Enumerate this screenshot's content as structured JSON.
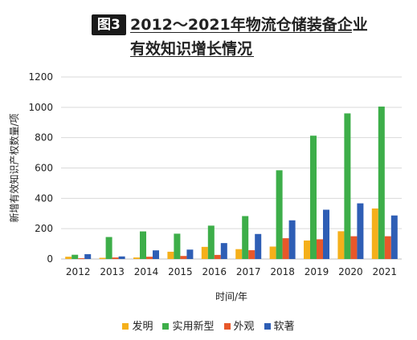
{
  "header": {
    "badge": "图3",
    "title_line1": "2012～2021年物流仓储装备企业",
    "title_line2": "有效知识增长情况"
  },
  "chart_data": {
    "type": "bar",
    "categories": [
      "2012",
      "2013",
      "2014",
      "2015",
      "2016",
      "2017",
      "2018",
      "2019",
      "2020",
      "2021"
    ],
    "series": [
      {
        "name": "发明",
        "color": "#F5B01B",
        "values": [
          15,
          8,
          10,
          48,
          80,
          65,
          82,
          122,
          183,
          333
        ]
      },
      {
        "name": "实用新型",
        "color": "#3DAE49",
        "values": [
          28,
          145,
          182,
          167,
          220,
          283,
          585,
          813,
          960,
          1005
        ]
      },
      {
        "name": "外观",
        "color": "#E8582A",
        "values": [
          5,
          10,
          15,
          20,
          27,
          58,
          137,
          130,
          150,
          150
        ]
      },
      {
        "name": "软著",
        "color": "#2E5EB5",
        "values": [
          32,
          17,
          57,
          62,
          105,
          165,
          255,
          325,
          367,
          287
        ]
      }
    ],
    "title": "",
    "xlabel": "时间/年",
    "ylabel": "新增有效知识产权数量/项",
    "ylim": [
      0,
      1200
    ],
    "yticks": [
      0,
      200,
      400,
      600,
      800,
      1000,
      1200
    ],
    "grid": true,
    "legend": "bottom"
  }
}
